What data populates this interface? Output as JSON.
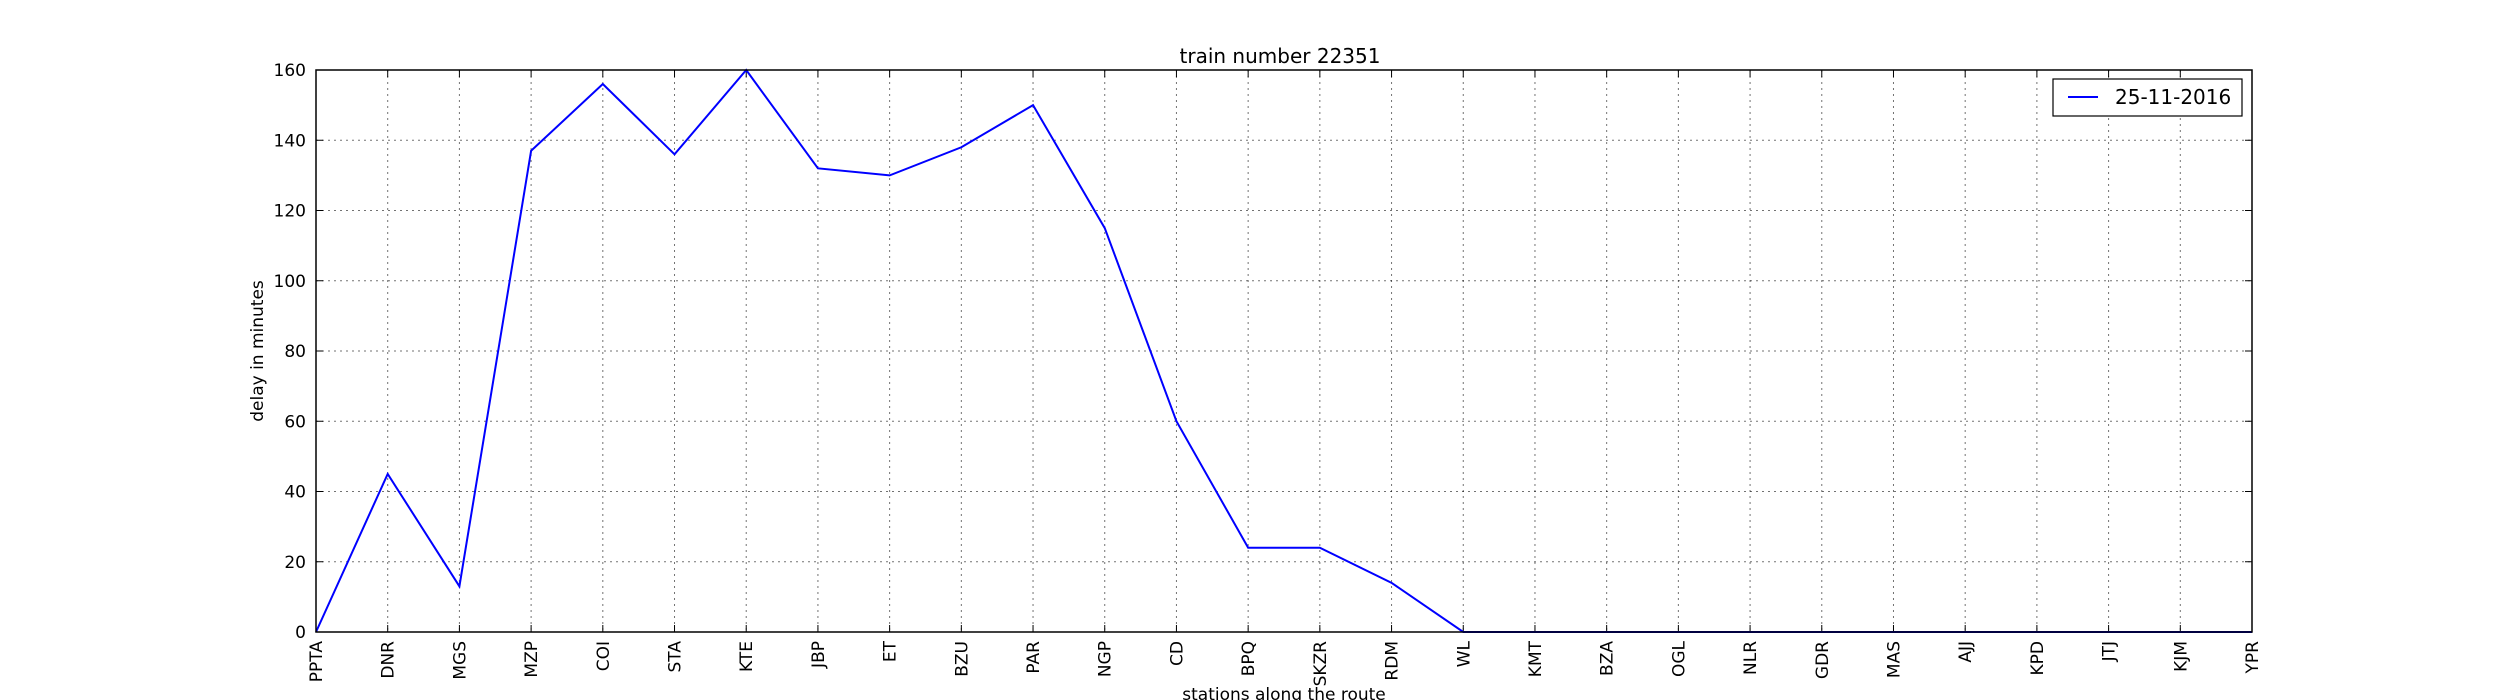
{
  "chart_data": {
    "type": "line",
    "title": "train number 22351",
    "xlabel": "stations along the route",
    "ylabel": "delay in minutes",
    "categories": [
      "PPTA",
      "DNR",
      "MGS",
      "MZP",
      "COI",
      "STA",
      "KTE",
      "JBP",
      "ET",
      "BZU",
      "PAR",
      "NGP",
      "CD",
      "BPQ",
      "SKZR",
      "RDM",
      "WL",
      "KMT",
      "BZA",
      "OGL",
      "NLR",
      "GDR",
      "MAS",
      "AJJ",
      "KPD",
      "JTJ",
      "KJM",
      "YPR"
    ],
    "series": [
      {
        "name": "25-11-2016",
        "values": [
          0,
          45,
          13,
          137,
          156,
          136,
          160,
          132,
          130,
          138,
          150,
          115,
          60,
          24,
          24,
          14,
          0,
          0,
          0,
          0,
          0,
          0,
          0,
          0,
          0,
          0,
          0,
          0
        ],
        "color": "#0000ff"
      }
    ],
    "ylim": [
      0,
      160
    ],
    "yticks": [
      0,
      20,
      40,
      60,
      80,
      100,
      120,
      140,
      160
    ],
    "grid": true,
    "legend_position": "top-right"
  }
}
